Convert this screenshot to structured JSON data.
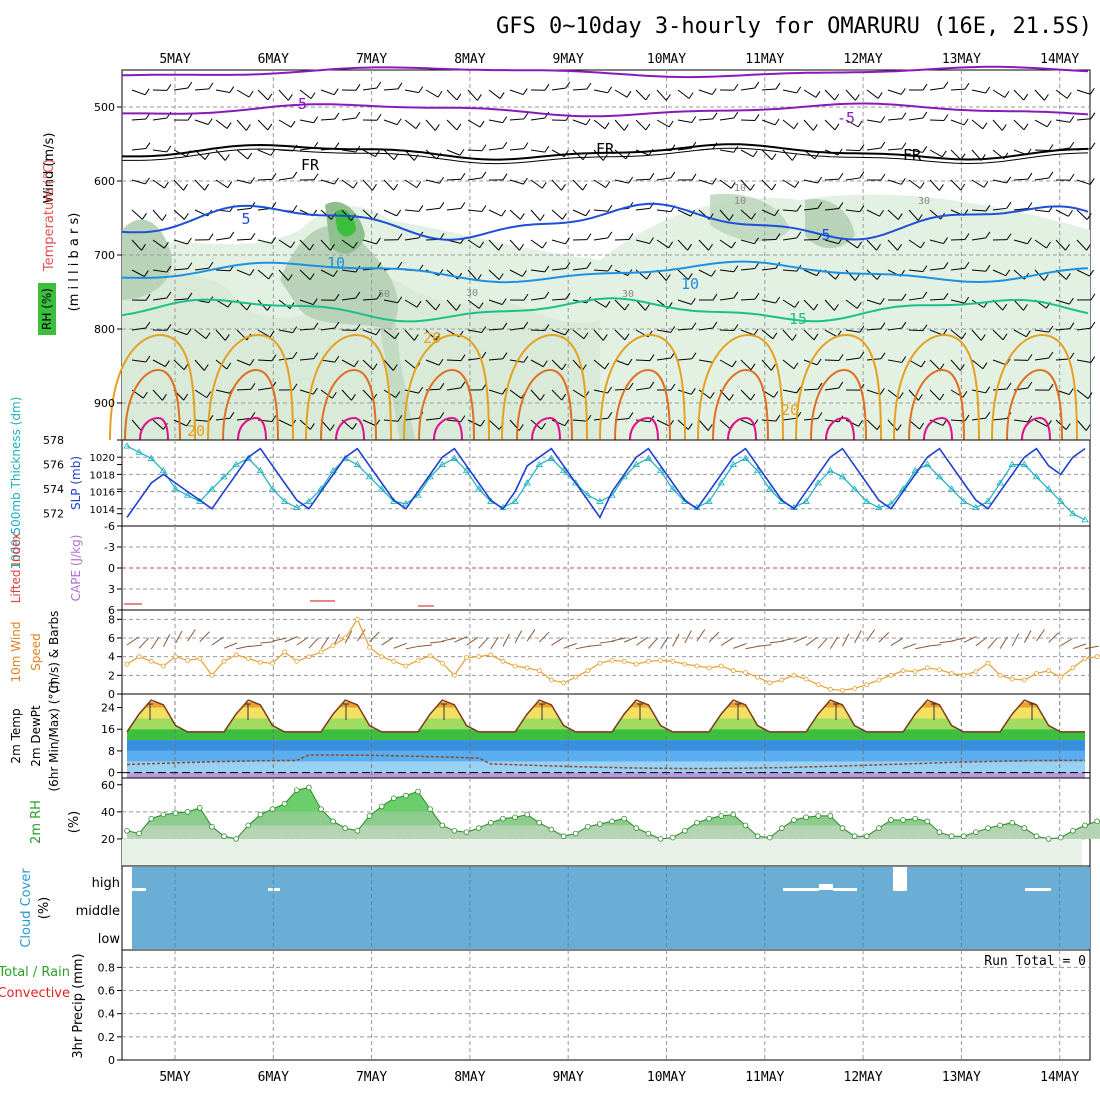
{
  "title": "GFS 0~10day 3-hourly for OMARURU (16E, 21.5S)",
  "dates": [
    "5MAY",
    "6MAY",
    "7MAY",
    "8MAY",
    "9MAY",
    "10MAY",
    "11MAY",
    "12MAY",
    "13MAY",
    "14MAY"
  ],
  "colors": {
    "purple": "#8a1ab8",
    "black": "#000000",
    "blue": "#1f4fd8",
    "lightblue": "#1e90e0",
    "teal": "#1abf8a",
    "orange": "#e6a020",
    "darkorange": "#e07020",
    "magenta": "#e0108a",
    "rh_light": "#e3f1e3",
    "rh_mid": "#b9d3b9",
    "rh_dark": "#8fbf8f",
    "rh_green": "#3cbf3c",
    "slp": "#1f3fcf",
    "thickness": "#1ab0c0",
    "lifted": "#d84040",
    "wind10": "#e8a030",
    "barb10": "#8b5a3a",
    "cloud": "#6aaed6"
  },
  "charts": {
    "upper": {
      "ylabel_wind": "Wind (m/s)",
      "ylabel_temp": "Temperature (°C)",
      "ylabel_mb": "(m i l l i b a r s)",
      "ylabel_rh": "RH (%)",
      "yticks": [
        "500",
        "600",
        "700",
        "800",
        "900"
      ],
      "contour_labels": [
        "-5",
        "-5",
        "FR",
        "FR",
        "FR",
        "5",
        "5",
        "10",
        "10",
        "15",
        "20",
        "20",
        "20",
        "10",
        "10",
        "30",
        "30",
        "30",
        "50"
      ]
    },
    "slp": {
      "ylabel_slp": "SLP (mb)",
      "ylabel_thick": "1000-500mb Thickness (dm)",
      "yticks_slp": [
        "1020",
        "1018",
        "1016",
        "1014"
      ],
      "yticks_thick": [
        "578",
        "576",
        "574",
        "572"
      ]
    },
    "lifted": {
      "ylabel_li": "Lifted Index",
      "ylabel_cape": "CAPE (J/kg)",
      "yticks": [
        "-6",
        "-3",
        "0",
        "3",
        "6"
      ]
    },
    "wind10": {
      "ylabel_a": "10m Wind",
      "ylabel_b": "Speed",
      "ylabel_c": "(m/s) & Barbs",
      "yticks": [
        "8",
        "6",
        "4",
        "2",
        "0"
      ]
    },
    "temp": {
      "ylabel_a": "2m Temp",
      "ylabel_b": "2m DewPt",
      "ylabel_c": "(6hr Min/Max) (°C)",
      "yticks": [
        "24",
        "16",
        "8",
        "0"
      ]
    },
    "rh2m": {
      "ylabel": "2m RH",
      "ylabel_unit": "(%)",
      "yticks": [
        "60",
        "40",
        "20"
      ]
    },
    "cloud": {
      "ylabel": "Cloud Cover",
      "ylabel_unit": "(%)",
      "levels": [
        "high",
        "middle",
        "low"
      ]
    },
    "precip": {
      "ylabel_a": "Total / Rain",
      "ylabel_b": "Convective",
      "ylabel_c": "3hr Precip (mm)",
      "yticks": [
        "0.8",
        "0.6",
        "0.4",
        "0.2",
        "0"
      ],
      "run_total": "Run Total = 0"
    }
  },
  "chart_data": [
    {
      "type": "line",
      "panel": "SLP (mb)",
      "series": [
        {
          "name": "SLP (mb)",
          "values": [
            1013,
            1015,
            1017,
            1018,
            1017,
            1016,
            1015,
            1014,
            1016,
            1018,
            1020,
            1021,
            1019,
            1017,
            1015,
            1014,
            1016,
            1018,
            1020,
            1021,
            1019,
            1017,
            1015,
            1014,
            1016,
            1018,
            1020,
            1021,
            1019,
            1017,
            1015,
            1014,
            1016,
            1019,
            1020,
            1021,
            1019,
            1017,
            1015,
            1013,
            1016,
            1018,
            1020,
            1021,
            1019,
            1017,
            1015,
            1014,
            1016,
            1018,
            1020,
            1021,
            1019,
            1017,
            1015,
            1014,
            1016,
            1018,
            1020,
            1021,
            1019,
            1017,
            1015,
            1014,
            1016,
            1018,
            1020,
            1021,
            1019,
            1017,
            1015,
            1014,
            1016,
            1018,
            1020,
            1021,
            1019,
            1018,
            1020,
            1021
          ]
        }
      ],
      "ylim": [
        1012,
        1022
      ]
    },
    {
      "type": "line",
      "panel": "1000-500mb Thickness (dm)",
      "series": [
        {
          "name": "1000-500mb Thickness (dm)",
          "values": [
            577.5,
            577,
            576.5,
            575.5,
            574,
            573.5,
            573,
            574,
            575,
            576,
            576.5,
            575.5,
            574,
            573,
            572.5,
            573,
            574,
            575.5,
            576.5,
            576,
            575,
            574,
            573,
            572.8,
            573.5,
            575,
            576,
            576.5,
            575.5,
            574,
            573,
            572.5,
            573,
            574.5,
            576,
            576.5,
            575.5,
            574.5,
            573.5,
            573,
            573.5,
            575,
            576,
            576.5,
            575.5,
            574,
            573,
            572.5,
            573,
            574.5,
            576,
            576.5,
            575.5,
            574,
            573,
            572.5,
            573,
            574.5,
            575.5,
            575,
            574,
            573,
            572.5,
            572.8,
            574,
            575.5,
            576,
            575,
            574,
            573,
            572.5,
            573,
            574.5,
            576,
            576,
            575,
            574,
            573,
            572,
            571.5
          ]
        }
      ],
      "ylim": [
        571,
        578
      ]
    },
    {
      "type": "line",
      "panel": "10m Wind Speed (m/s)",
      "series": [
        {
          "name": "10m Wind Speed",
          "values": [
            3.2,
            4,
            3.5,
            3,
            4,
            3.6,
            3.8,
            2,
            3.5,
            4.2,
            3.8,
            3.4,
            3.3,
            4.5,
            3.5,
            4,
            4.5,
            5.2,
            6,
            8,
            5,
            4,
            3.5,
            3,
            3.6,
            4.1,
            3.3,
            2,
            3.9,
            4,
            4.2,
            3.5,
            3,
            2.8,
            2.5,
            1.5,
            1.2,
            1.8,
            2.5,
            3.3,
            3.6,
            3.5,
            3.2,
            3.5,
            3.6,
            3.5,
            3.2,
            3,
            2.8,
            3,
            2.5,
            2.3,
            1.8,
            1.2,
            1.5,
            2,
            1.6,
            1,
            0.5,
            0.4,
            0.6,
            1,
            1.5,
            2,
            2.5,
            2.4,
            2.8,
            2.6,
            2.2,
            2,
            2.4,
            3.3,
            2,
            1.6,
            1.5,
            2.2,
            2.5,
            1.8,
            2.8,
            3.8,
            4,
            4.5,
            6,
            5,
            4.4,
            4,
            4.1,
            4,
            3.6,
            6
          ]
        }
      ],
      "ylim": [
        0,
        9
      ]
    },
    {
      "type": "area",
      "panel": "2m RH (%)",
      "series": [
        {
          "name": "2m RH",
          "values": [
            26,
            24,
            35,
            38,
            39,
            40,
            43,
            29,
            22,
            20,
            30,
            38,
            42,
            46,
            56,
            58,
            42,
            33,
            28,
            26,
            37,
            44,
            50,
            52,
            55,
            42,
            30,
            26,
            25,
            28,
            32,
            35,
            36,
            38,
            32,
            27,
            22,
            24,
            29,
            31,
            33,
            35,
            28,
            24,
            20,
            21,
            26,
            32,
            35,
            37,
            38,
            30,
            22,
            21,
            28,
            34,
            36,
            37,
            37,
            28,
            22,
            22,
            28,
            34,
            34,
            35,
            33,
            25,
            22,
            22,
            25,
            28,
            30,
            32,
            28,
            22,
            20,
            21,
            26,
            30,
            33,
            35,
            37
          ]
        }
      ],
      "ylim": [
        0,
        65
      ]
    }
  ]
}
